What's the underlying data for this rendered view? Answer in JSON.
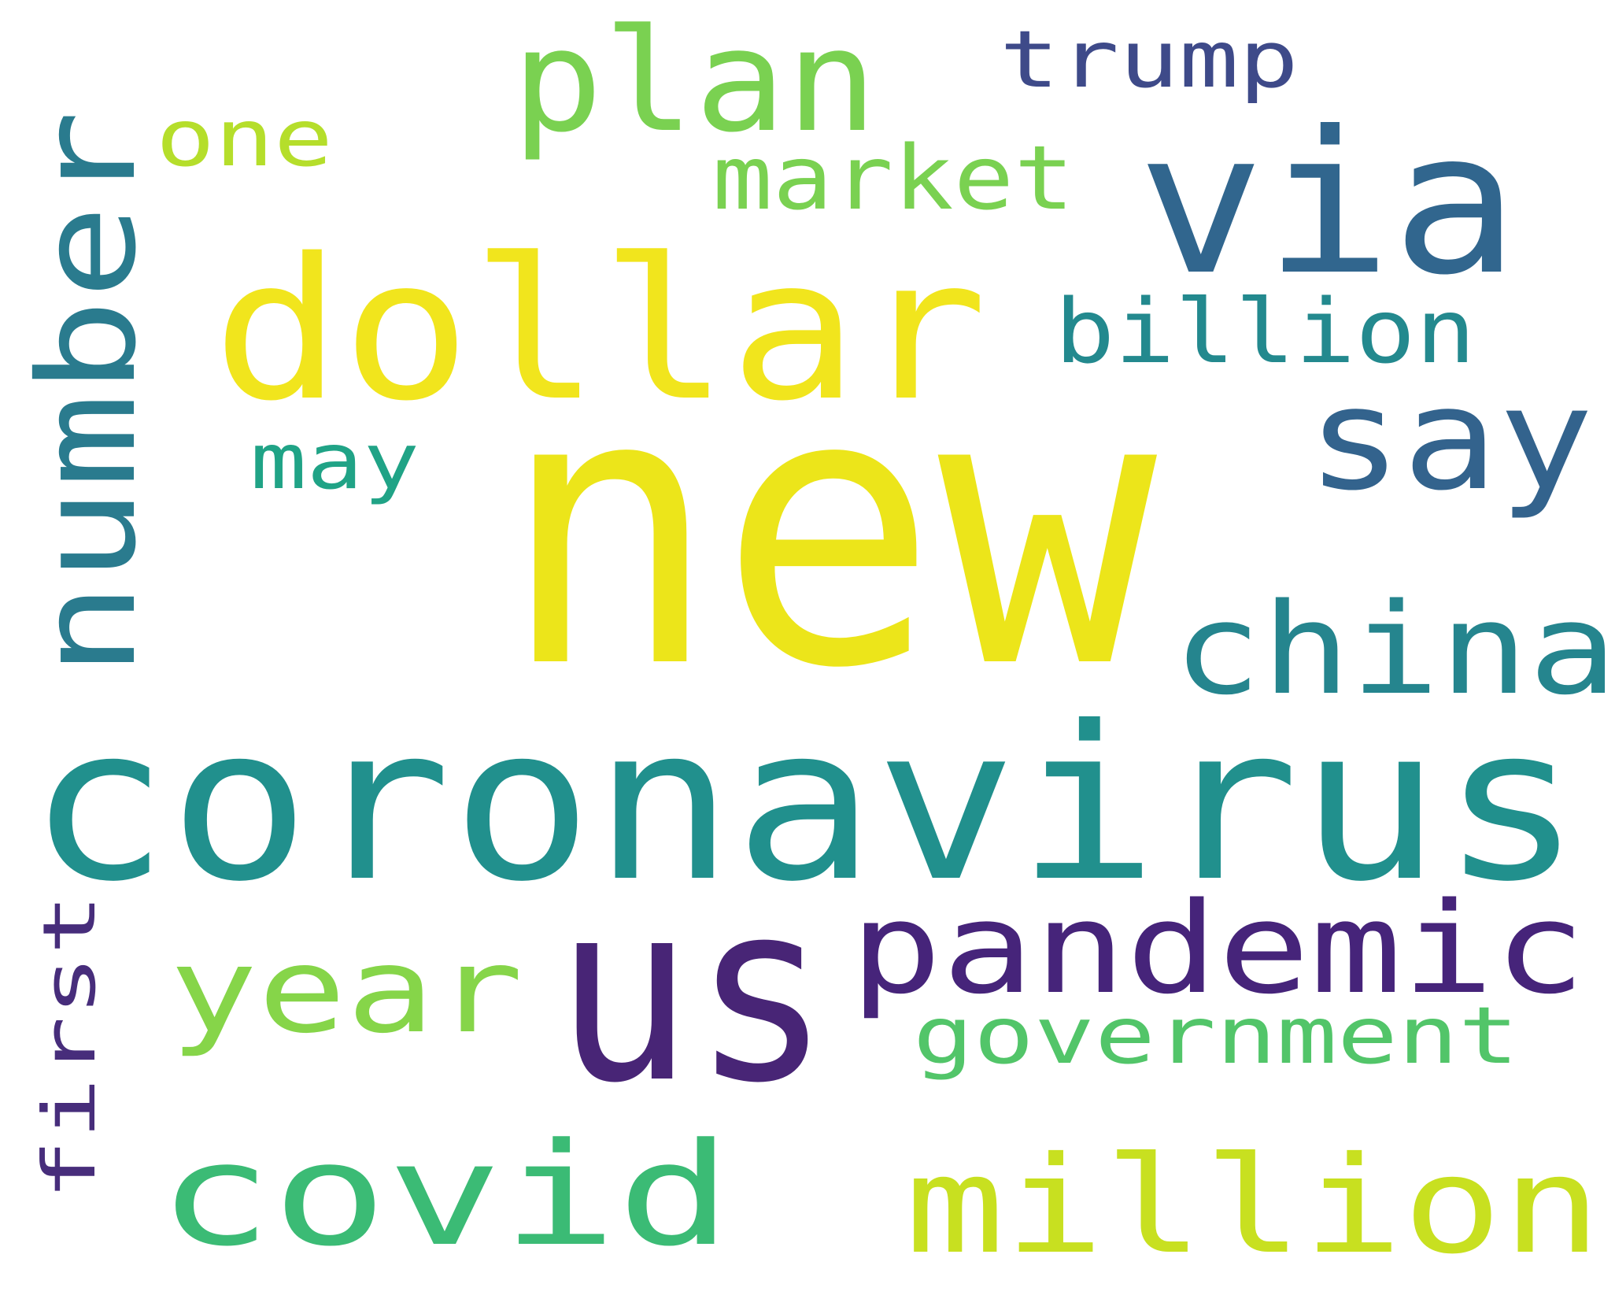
{
  "words": [
    {
      "id": "new",
      "text": "new",
      "color": "#ece51a"
    },
    {
      "id": "coronavirus",
      "text": "coronavirus",
      "color": "#21908d"
    },
    {
      "id": "dollar",
      "text": "dollar",
      "color": "#f1e51d"
    },
    {
      "id": "us",
      "text": "us",
      "color": "#482576"
    },
    {
      "id": "via",
      "text": "via",
      "color": "#31668e"
    },
    {
      "id": "number",
      "text": "number",
      "color": "#2a7b8e"
    },
    {
      "id": "plan",
      "text": "plan",
      "color": "#7ad151"
    },
    {
      "id": "say",
      "text": "say",
      "color": "#33638d"
    },
    {
      "id": "china",
      "text": "china",
      "color": "#25858e"
    },
    {
      "id": "pandemic",
      "text": "pandemic",
      "color": "#46247a"
    },
    {
      "id": "covid",
      "text": "covid",
      "color": "#3bbb75"
    },
    {
      "id": "million",
      "text": "million",
      "color": "#c8e020"
    },
    {
      "id": "year",
      "text": "year",
      "color": "#86d549"
    },
    {
      "id": "billion",
      "text": "billion",
      "color": "#23898e"
    },
    {
      "id": "market",
      "text": "market",
      "color": "#7ad151"
    },
    {
      "id": "trump",
      "text": "trump",
      "color": "#3e4a89"
    },
    {
      "id": "government",
      "text": "government",
      "color": "#52c569"
    },
    {
      "id": "one",
      "text": "one",
      "color": "#b5de2b"
    },
    {
      "id": "may",
      "text": "may",
      "color": "#20a386"
    },
    {
      "id": "first",
      "text": "first",
      "color": "#472d7b"
    }
  ]
}
